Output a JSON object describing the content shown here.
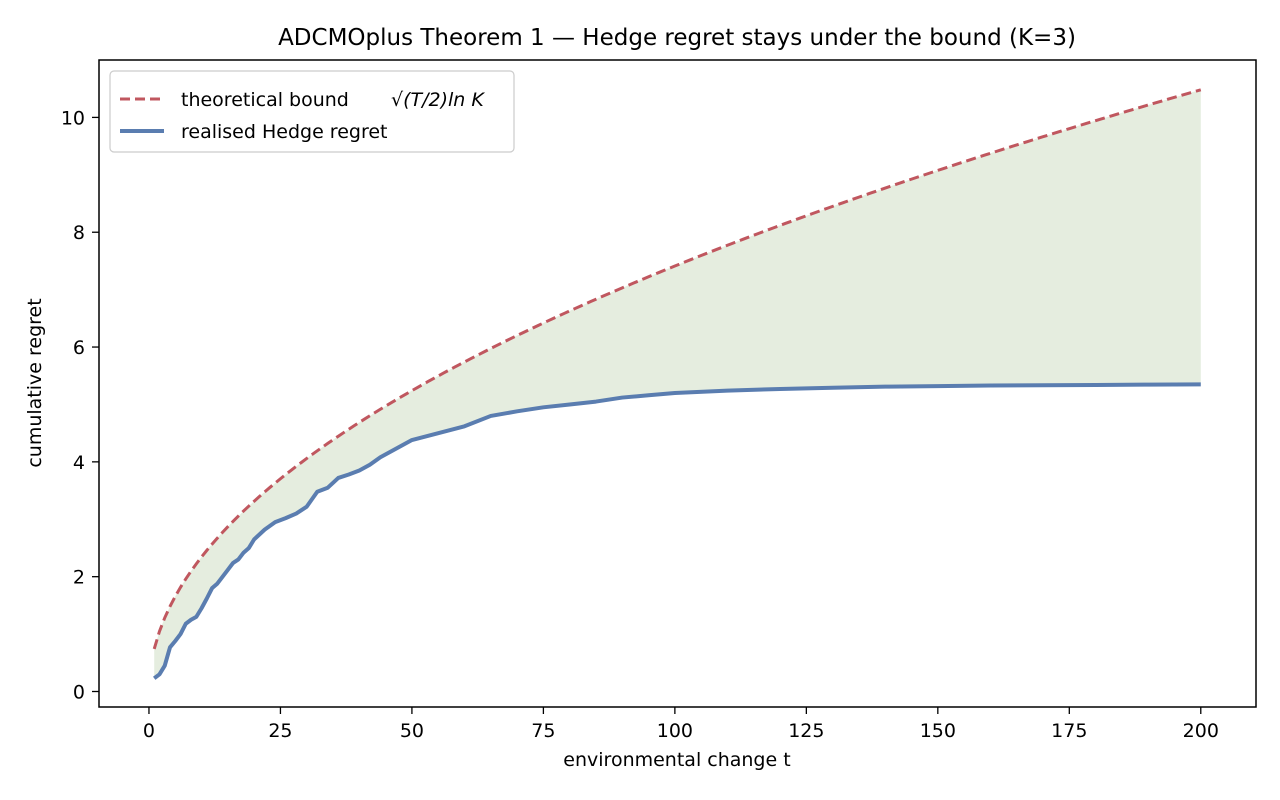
{
  "chart_data": {
    "type": "line",
    "title": "ADCMOplus Theorem 1 — Hedge regret stays under the bound (K=3)",
    "xlabel": "environmental change t",
    "ylabel": "cumulative regret",
    "xlim": [
      -9.5,
      210.5
    ],
    "ylim": [
      -0.27,
      11.0
    ],
    "xticks": [
      0,
      25,
      50,
      75,
      100,
      125,
      150,
      175,
      200
    ],
    "yticks": [
      0,
      2,
      4,
      6,
      8,
      10
    ],
    "grid": false,
    "legend_position": "top-left",
    "fill_between": {
      "series": [
        "theoretical bound",
        "realised Hedge regret"
      ],
      "color": "#e5eddf"
    },
    "series": [
      {
        "name": "theoretical bound",
        "legend_label": "theoretical bound",
        "legend_math": "√(T/2)ln K",
        "style": "dashed",
        "color": "#c0575f",
        "formula": "sqrt((t/2)*ln(3))",
        "x": [
          1,
          200
        ]
      },
      {
        "name": "realised Hedge regret",
        "legend_label": "realised Hedge regret",
        "style": "solid",
        "color": "#5a7db0",
        "x": [
          1,
          2,
          3,
          4,
          5,
          6,
          7,
          8,
          9,
          10,
          11,
          12,
          13,
          14,
          15,
          16,
          17,
          18,
          19,
          20,
          22,
          24,
          26,
          28,
          30,
          32,
          34,
          36,
          38,
          40,
          42,
          44,
          46,
          48,
          50,
          55,
          60,
          65,
          70,
          75,
          80,
          85,
          90,
          95,
          100,
          110,
          120,
          130,
          140,
          150,
          160,
          170,
          180,
          190,
          200
        ],
        "values": [
          0.23,
          0.3,
          0.45,
          0.77,
          0.88,
          1.0,
          1.18,
          1.25,
          1.3,
          1.45,
          1.62,
          1.8,
          1.88,
          2.0,
          2.12,
          2.24,
          2.3,
          2.42,
          2.5,
          2.65,
          2.82,
          2.95,
          3.02,
          3.1,
          3.22,
          3.48,
          3.55,
          3.72,
          3.78,
          3.85,
          3.95,
          4.08,
          4.18,
          4.28,
          4.38,
          4.5,
          4.62,
          4.8,
          4.88,
          4.95,
          5.0,
          5.05,
          5.12,
          5.16,
          5.2,
          5.24,
          5.27,
          5.29,
          5.31,
          5.32,
          5.33,
          5.335,
          5.34,
          5.345,
          5.35
        ]
      }
    ]
  }
}
